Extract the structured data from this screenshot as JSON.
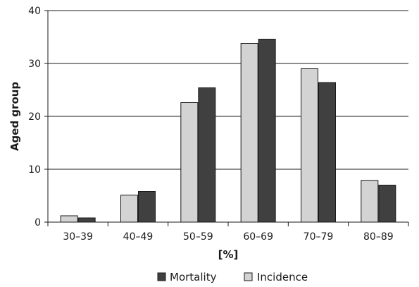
{
  "chart_data": {
    "type": "bar",
    "categories": [
      "30–39",
      "40–49",
      "50–59",
      "60–69",
      "70–79",
      "80–89"
    ],
    "series": [
      {
        "name": "Incidence",
        "values": [
          1.2,
          5.1,
          22.6,
          33.8,
          29.0,
          7.9
        ],
        "color": "#d3d3d3"
      },
      {
        "name": "Mortality",
        "values": [
          0.8,
          5.8,
          25.4,
          34.6,
          26.4,
          7.0
        ],
        "color": "#404040"
      }
    ],
    "xlabel": "[%]",
    "ylabel": "Aged group",
    "ylim": [
      0,
      40
    ],
    "yticks": [
      "0",
      "10",
      "20",
      "30",
      "40"
    ],
    "grid": "horizontal",
    "legend": {
      "position": "bottom",
      "items": [
        "Mortality",
        "Incidence"
      ]
    }
  }
}
